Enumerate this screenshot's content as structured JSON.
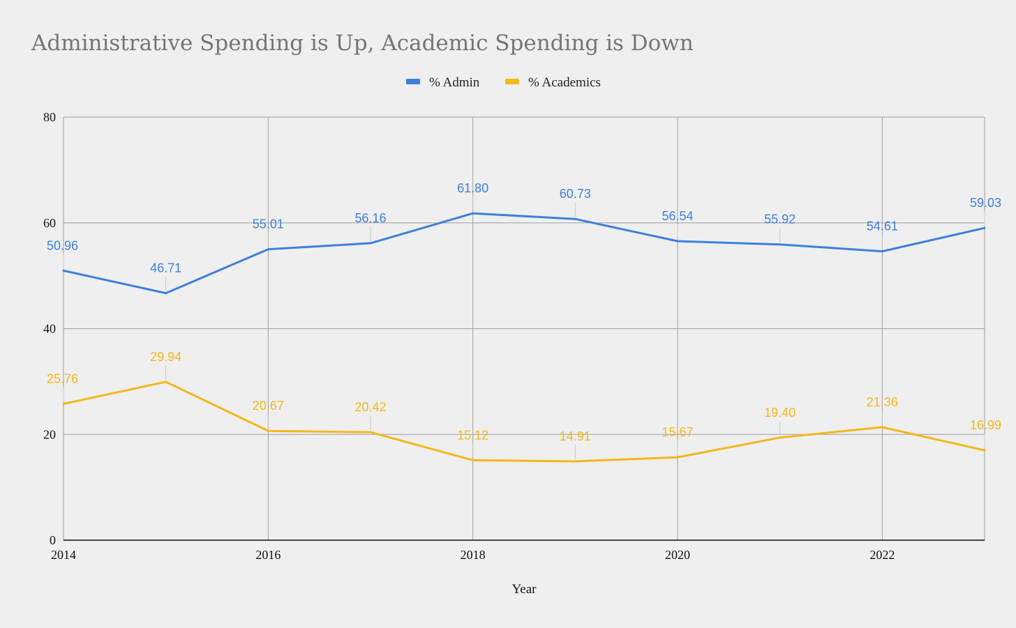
{
  "chart_data": {
    "type": "line",
    "title": "Administrative Spending is Up, Academic Spending is Down",
    "xlabel": "Year",
    "ylabel": "",
    "x": [
      2014,
      2015,
      2016,
      2017,
      2018,
      2019,
      2020,
      2021,
      2022,
      2023
    ],
    "xlim": [
      2014,
      2023
    ],
    "ylim": [
      0,
      80
    ],
    "x_ticks": [
      "2014",
      "2016",
      "2018",
      "2020",
      "2022"
    ],
    "x_tick_values": [
      2014,
      2016,
      2018,
      2020,
      2022
    ],
    "y_ticks": [
      "0",
      "20",
      "40",
      "60",
      "80"
    ],
    "y_tick_values": [
      0,
      20,
      40,
      60,
      80
    ],
    "grid": true,
    "legend_position": "top-center",
    "series": [
      {
        "name": "% Admin",
        "color": "#3f7fdb",
        "values": [
          50.96,
          46.71,
          55.01,
          56.16,
          61.8,
          60.73,
          56.54,
          55.92,
          54.61,
          59.03
        ],
        "labels": [
          "50.96",
          "46.71",
          "55.01",
          "56.16",
          "61.80",
          "60.73",
          "56.54",
          "55.92",
          "54.61",
          "59.03"
        ]
      },
      {
        "name": "% Academics",
        "color": "#f2b81c",
        "values": [
          25.76,
          29.94,
          20.67,
          20.42,
          15.12,
          14.91,
          15.67,
          19.4,
          21.36,
          16.99
        ],
        "labels": [
          "25.76",
          "29.94",
          "20.67",
          "20.42",
          "15.12",
          "14.91",
          "15.67",
          "19.40",
          "21.36",
          "16.99"
        ]
      }
    ]
  }
}
